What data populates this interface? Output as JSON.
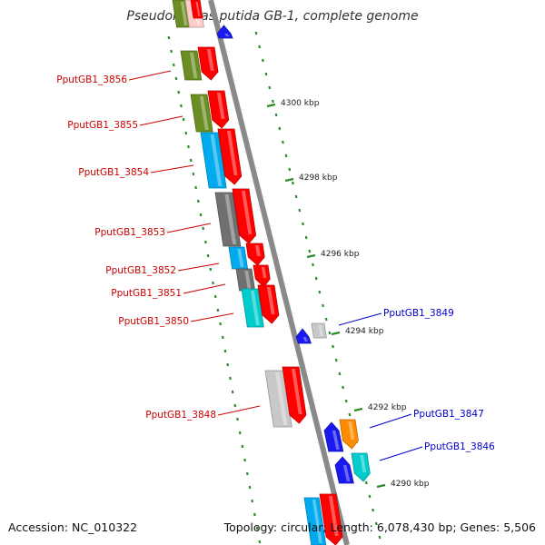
{
  "title": "Pseudomonas putida GB-1, complete genome",
  "footer": {
    "accession": "Accession: NC_010322",
    "topology": "Topology: circular; Length: 6,078,430 bp; Genes: 5,506"
  },
  "colors": {
    "backbone": "#8a8a8a",
    "tick": "#2e8b2e",
    "left_label": "#cc0000",
    "right_label": "#0000cc",
    "cds_red": "#ff0000",
    "olive": "#6b8e23",
    "light_blue": "#00aaee",
    "dark_gray": "#707070",
    "cyan": "#00cccc",
    "light_gray": "#c8c8c8",
    "blue": "#1a1aee",
    "orange": "#ff8c00",
    "pink": "#ffcccc"
  },
  "scale_labels": [
    "4300 kbp",
    "4298 kbp",
    "4296 kbp",
    "4294 kbp",
    "4292 kbp",
    "4290 kbp"
  ],
  "gene_labels_left": [
    "PputGB1_3856",
    "PputGB1_3855",
    "PputGB1_3854",
    "PputGB1_3853",
    "PputGB1_3852",
    "PputGB1_3851",
    "PputGB1_3850",
    "PputGB1_3848"
  ],
  "gene_labels_right": [
    "PputGB1_3849",
    "PputGB1_3847",
    "PputGB1_3846"
  ]
}
